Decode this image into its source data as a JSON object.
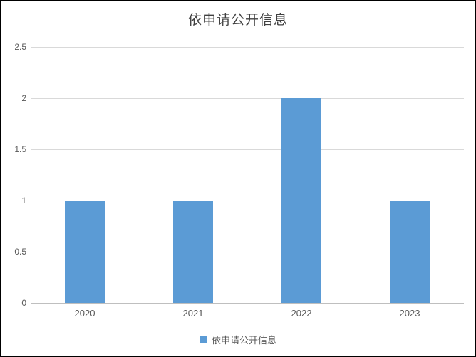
{
  "chart_data": {
    "type": "bar",
    "title": "依申请公开信息",
    "categories": [
      "2020",
      "2021",
      "2022",
      "2023"
    ],
    "series": [
      {
        "name": "依申请公开信息",
        "values": [
          1,
          1,
          2,
          1
        ]
      }
    ],
    "xlabel": "",
    "ylabel": "",
    "ylim": [
      0,
      2.5
    ],
    "yticks": [
      0,
      0.5,
      1,
      1.5,
      2,
      2.5
    ],
    "ytick_labels": [
      "0",
      "0.5",
      "1",
      "1.5",
      "2",
      "2.5"
    ],
    "grid": true,
    "legend_position": "bottom",
    "colors": {
      "bar": "#5b9bd5",
      "gridline": "#d9d9d9",
      "axis_line": "#bfbfbf",
      "title_text": "#404040",
      "tick_text": "#595959"
    }
  }
}
